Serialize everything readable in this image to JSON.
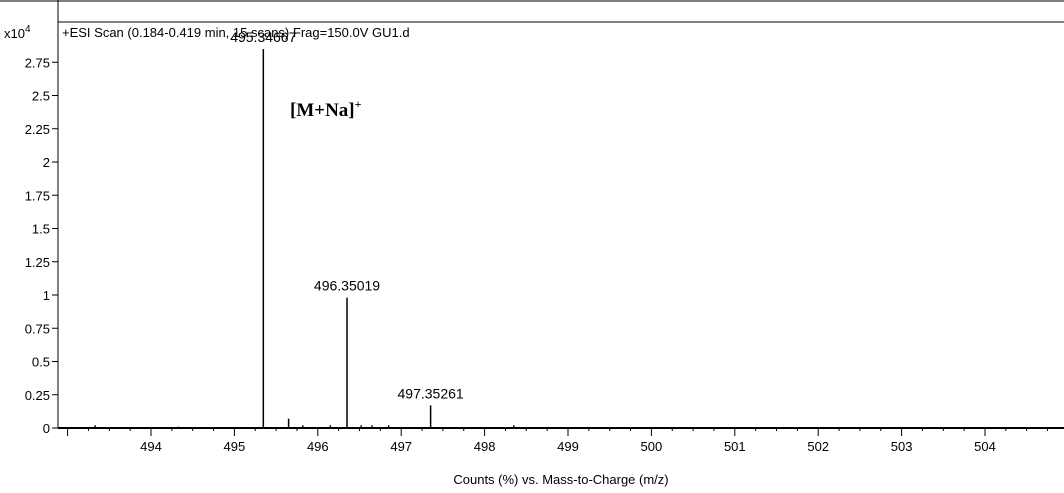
{
  "chart_data": {
    "type": "line",
    "title": "+ESI Scan (0.184-0.419 min, 15 scans) Frag=150.0V GU1.d",
    "xlabel": "Counts (%) vs. Mass-to-Charge (m/z)",
    "ylabel": "",
    "y_multiplier": "x10",
    "y_multiplier_exp": "4",
    "xlim": [
      493.0,
      505.0
    ],
    "ylim": [
      0,
      3.0
    ],
    "x_ticks": [
      494,
      495,
      496,
      497,
      498,
      499,
      500,
      501,
      502,
      503,
      504
    ],
    "y_ticks": [
      0,
      0.25,
      0.5,
      0.75,
      1,
      1.25,
      1.5,
      1.75,
      2,
      2.25,
      2.5,
      2.75
    ],
    "y_tick_labels": [
      "0",
      "0.25",
      "0.5",
      "0.75",
      "1",
      "1.25",
      "1.5",
      "1.75",
      "2",
      "2.25",
      "2.5",
      "2.75"
    ],
    "grid": false,
    "series": [
      {
        "peaks": [
          {
            "mz": 493.33,
            "intensity": 0.02
          },
          {
            "mz": 494.33,
            "intensity": 0.01
          },
          {
            "mz": 495.34667,
            "intensity": 2.85,
            "label": "495.34667"
          },
          {
            "mz": 495.65,
            "intensity": 0.07
          },
          {
            "mz": 495.82,
            "intensity": 0.02
          },
          {
            "mz": 496.15,
            "intensity": 0.02
          },
          {
            "mz": 496.35019,
            "intensity": 0.98,
            "label": "496.35019"
          },
          {
            "mz": 496.52,
            "intensity": 0.02
          },
          {
            "mz": 496.65,
            "intensity": 0.02
          },
          {
            "mz": 496.85,
            "intensity": 0.02
          },
          {
            "mz": 497.35261,
            "intensity": 0.17,
            "label": "497.35261"
          },
          {
            "mz": 498.35,
            "intensity": 0.02
          }
        ]
      }
    ],
    "annotations": [
      {
        "text": "[M+Na]",
        "superscript": "+"
      }
    ]
  }
}
